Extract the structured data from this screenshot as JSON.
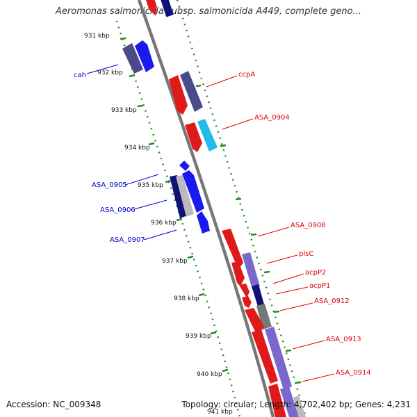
{
  "title": "Aeromonas salmonicida subsp. salmonicida A449, complete geno...",
  "accession": "Accession: NC_009348",
  "topology": "Topology: circular; Length: 4,702,402 bp; Genes: 4,231",
  "ticks": [
    "931 kbp",
    "932 kbp",
    "933 kbp",
    "934 kbp",
    "935 kbp",
    "936 kbp",
    "937 kbp",
    "938 kbp",
    "939 kbp",
    "940 kbp",
    "941 kbp"
  ],
  "genes_left": [
    "cah",
    "ASA_0905",
    "ASA_0906",
    "ASA_0907"
  ],
  "genes_right": [
    "ccpA",
    "ASA_0904",
    "ASA_0908",
    "plsC",
    "acpP2",
    "acpP1",
    "ASA_0912",
    "ASA_0913",
    "ASA_0914"
  ],
  "colors": {
    "forward": "#ff0000",
    "reverse": "#0000ff",
    "dark_blue": "#000080",
    "slate": "#4b4b8c",
    "cyan": "#22bbee",
    "violet": "#7b68cc",
    "gray": "#777777",
    "backbone": "#888888",
    "ticks": "#228b22"
  }
}
